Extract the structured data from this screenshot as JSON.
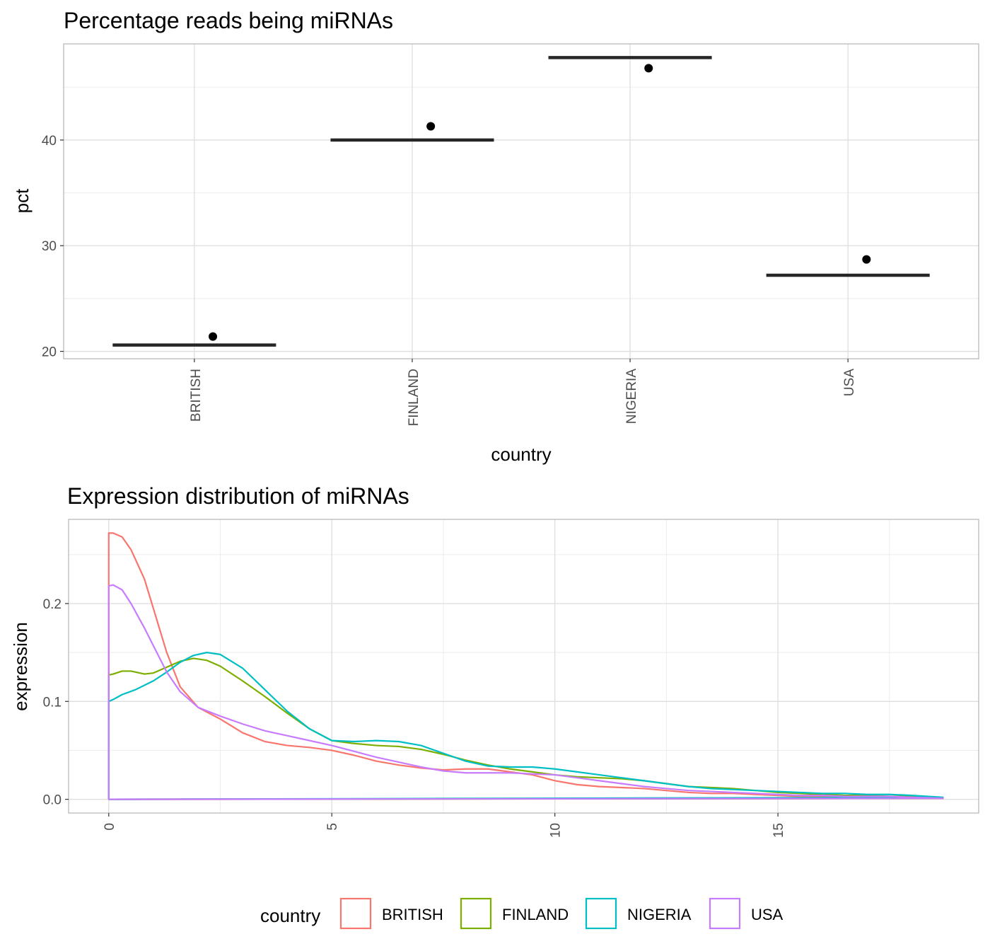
{
  "chart_data": [
    {
      "type": "scatter",
      "title": "Percentage reads being miRNAs",
      "xlabel": "country",
      "ylabel": "pct",
      "categories": [
        "BRITISH",
        "FINLAND",
        "NIGERIA",
        "USA"
      ],
      "y_ticks": [
        20,
        30,
        40
      ],
      "y_tick_labels": [
        "20",
        "30",
        "40"
      ],
      "ylim": [
        19.3,
        49.1
      ],
      "grid": true,
      "series": [
        {
          "kind": "median-bar",
          "values": [
            20.6,
            40.0,
            47.8,
            27.2
          ]
        },
        {
          "kind": "points",
          "values": [
            21.4,
            41.3,
            46.8,
            28.7
          ]
        }
      ]
    },
    {
      "type": "line",
      "title": "Expression distribution of miRNAs",
      "xlabel": "",
      "ylabel": "expression",
      "x_ticks": [
        0,
        5,
        10,
        15
      ],
      "x_tick_labels": [
        "0",
        "5",
        "10",
        "15"
      ],
      "y_ticks": [
        0.0,
        0.1,
        0.2
      ],
      "y_tick_labels": [
        "0.0",
        "0.1",
        "0.2"
      ],
      "xlim": [
        -0.9,
        19.5
      ],
      "ylim": [
        -0.014,
        0.286
      ],
      "grid": true,
      "legend": {
        "title": "country",
        "position": "bottom"
      },
      "series": [
        {
          "name": "BRITISH",
          "color": "#F8766D",
          "x": [
            0,
            0,
            0.1,
            0.3,
            0.5,
            0.8,
            1.0,
            1.3,
            1.6,
            2.0,
            2.5,
            3.0,
            3.5,
            4.0,
            4.5,
            5.0,
            5.5,
            6.0,
            6.5,
            7.0,
            7.5,
            8.0,
            8.5,
            9.0,
            9.5,
            10.0,
            10.5,
            11.0,
            11.5,
            12.0,
            12.5,
            13.0,
            13.5,
            14.0,
            14.5,
            15.0,
            15.5,
            16.0,
            16.5,
            17.0,
            17.5,
            18.0,
            18.7
          ],
          "y": [
            0,
            0.272,
            0.272,
            0.268,
            0.255,
            0.225,
            0.195,
            0.15,
            0.115,
            0.094,
            0.082,
            0.068,
            0.059,
            0.055,
            0.053,
            0.05,
            0.045,
            0.039,
            0.035,
            0.032,
            0.03,
            0.031,
            0.031,
            0.028,
            0.025,
            0.019,
            0.015,
            0.013,
            0.012,
            0.011,
            0.009,
            0.007,
            0.006,
            0.006,
            0.005,
            0.004,
            0.003,
            0.003,
            0.002,
            0.002,
            0.002,
            0.002,
            0.001
          ]
        },
        {
          "name": "FINLAND",
          "color": "#7CAE00",
          "x": [
            0,
            0,
            0.1,
            0.3,
            0.5,
            0.8,
            1.0,
            1.3,
            1.6,
            1.9,
            2.2,
            2.5,
            3.0,
            3.5,
            4.0,
            4.5,
            5.0,
            5.5,
            6.0,
            6.5,
            7.0,
            7.5,
            8.0,
            8.5,
            9.0,
            9.5,
            10.0,
            10.5,
            11.0,
            11.5,
            12.0,
            12.5,
            13.0,
            13.5,
            14.0,
            14.5,
            15.0,
            15.5,
            16.0,
            16.5,
            17.0,
            17.5,
            18.0,
            18.7
          ],
          "y": [
            0,
            0.127,
            0.128,
            0.131,
            0.131,
            0.128,
            0.129,
            0.135,
            0.141,
            0.144,
            0.142,
            0.136,
            0.121,
            0.105,
            0.088,
            0.072,
            0.06,
            0.057,
            0.055,
            0.054,
            0.051,
            0.046,
            0.04,
            0.035,
            0.031,
            0.028,
            0.025,
            0.023,
            0.022,
            0.021,
            0.019,
            0.016,
            0.013,
            0.012,
            0.011,
            0.009,
            0.007,
            0.006,
            0.005,
            0.004,
            0.004,
            0.003,
            0.003,
            0.001
          ]
        },
        {
          "name": "NIGERIA",
          "color": "#00BFC4",
          "x": [
            0,
            0,
            0.1,
            0.3,
            0.6,
            1.0,
            1.3,
            1.6,
            1.9,
            2.2,
            2.5,
            3.0,
            3.5,
            4.0,
            4.5,
            5.0,
            5.5,
            6.0,
            6.5,
            7.0,
            7.5,
            8.0,
            8.5,
            9.0,
            9.5,
            10.0,
            10.5,
            11.0,
            11.5,
            12.0,
            12.5,
            13.0,
            13.5,
            14.0,
            14.5,
            15.0,
            15.5,
            16.0,
            16.5,
            17.0,
            17.5,
            18.0,
            18.7
          ],
          "y": [
            0,
            0.1,
            0.102,
            0.107,
            0.112,
            0.121,
            0.13,
            0.14,
            0.147,
            0.15,
            0.148,
            0.134,
            0.112,
            0.09,
            0.072,
            0.06,
            0.059,
            0.06,
            0.059,
            0.055,
            0.047,
            0.039,
            0.034,
            0.033,
            0.033,
            0.031,
            0.028,
            0.025,
            0.022,
            0.019,
            0.016,
            0.013,
            0.011,
            0.01,
            0.009,
            0.008,
            0.007,
            0.006,
            0.006,
            0.005,
            0.005,
            0.004,
            0.002
          ]
        },
        {
          "name": "USA",
          "color": "#C77CFF",
          "x": [
            0,
            0,
            0.1,
            0.3,
            0.5,
            0.8,
            1.0,
            1.3,
            1.6,
            2.0,
            2.5,
            3.0,
            3.5,
            4.0,
            4.5,
            5.0,
            5.5,
            6.0,
            6.5,
            7.0,
            7.5,
            8.0,
            8.5,
            9.0,
            9.5,
            10.0,
            10.5,
            11.0,
            11.5,
            12.0,
            12.5,
            13.0,
            13.5,
            14.0,
            14.5,
            15.0,
            15.5,
            16.0,
            16.5,
            17.0,
            17.5,
            18.0,
            18.7
          ],
          "y": [
            0,
            0.218,
            0.219,
            0.214,
            0.2,
            0.175,
            0.157,
            0.13,
            0.11,
            0.094,
            0.085,
            0.077,
            0.07,
            0.065,
            0.06,
            0.055,
            0.049,
            0.043,
            0.038,
            0.033,
            0.029,
            0.027,
            0.027,
            0.027,
            0.026,
            0.025,
            0.022,
            0.019,
            0.016,
            0.013,
            0.011,
            0.009,
            0.008,
            0.007,
            0.006,
            0.005,
            0.004,
            0.004,
            0.003,
            0.003,
            0.003,
            0.002,
            0.001
          ]
        }
      ]
    }
  ]
}
